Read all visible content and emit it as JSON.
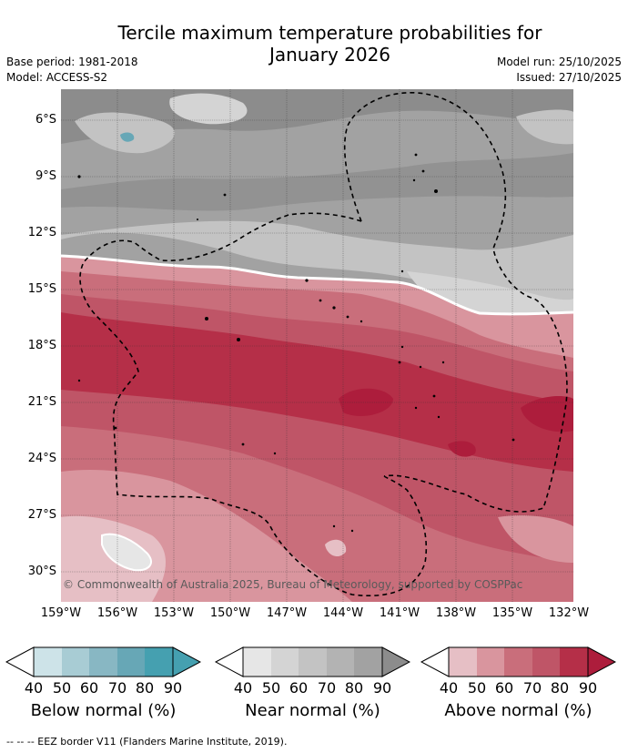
{
  "title_line1": "Tercile maximum temperature probabilities for",
  "title_line2": "January 2026",
  "base_period": "Base period: 1981-2018",
  "model": "Model: ACCESS-S2",
  "model_run": "Model run: 25/10/2025",
  "issued": "Issued: 27/10/2025",
  "copyright": "© Commonwealth of Australia 2025, Bureau of Meteorology, supported by COSPPac",
  "lat_labels": [
    "6°S",
    "9°S",
    "12°S",
    "15°S",
    "18°S",
    "21°S",
    "24°S",
    "27°S",
    "30°S"
  ],
  "lon_labels": [
    "159°W",
    "156°W",
    "153°W",
    "150°W",
    "147°W",
    "144°W",
    "141°W",
    "138°W",
    "135°W",
    "132°W"
  ],
  "legend": {
    "ticks": [
      "40",
      "50",
      "60",
      "70",
      "80",
      "90"
    ],
    "below": {
      "title": "Below normal (%)",
      "colors": [
        "#cde3e8",
        "#a8ccd4",
        "#88b7c3",
        "#67a7b6",
        "#45a0b0"
      ]
    },
    "near": {
      "title": "Near normal (%)",
      "colors": [
        "#e6e6e6",
        "#d4d4d4",
        "#c3c3c3",
        "#b3b3b3",
        "#a2a2a2",
        "#8c8c8c"
      ]
    },
    "above": {
      "title": "Above normal (%)",
      "colors": [
        "#e6bfc5",
        "#d9959e",
        "#c96e7b",
        "#bf5567",
        "#b52f48",
        "#ad1d3c"
      ]
    }
  },
  "footer": "-- -- -- EEZ border V11 (Flanders Marine Institute, 2019)."
}
